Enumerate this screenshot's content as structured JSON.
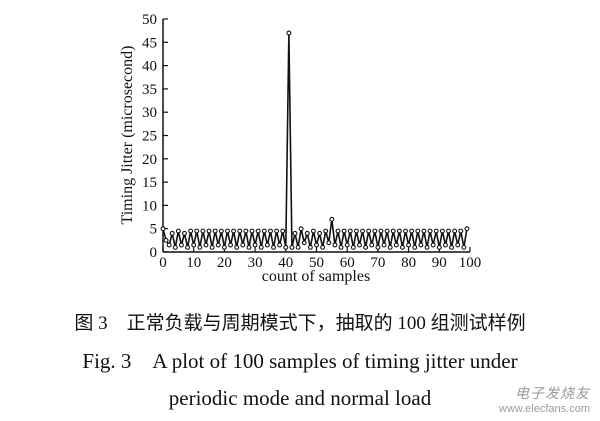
{
  "chart_data": {
    "type": "line",
    "xlabel": "count of samples",
    "ylabel": "Timing Jitter (microsecond)",
    "xlim": [
      0,
      100
    ],
    "ylim": [
      0,
      50
    ],
    "xticks": [
      0,
      10,
      20,
      30,
      40,
      50,
      60,
      70,
      80,
      90,
      100
    ],
    "yticks": [
      0,
      5,
      10,
      15,
      20,
      25,
      30,
      35,
      40,
      45,
      50
    ],
    "grid": false,
    "marker": "circle",
    "series": [
      {
        "values": [
          5.0,
          2.5,
          1.5,
          4.0,
          1.0,
          4.5,
          1.5,
          4.0,
          1.0,
          4.5,
          1.5,
          4.5,
          1.0,
          4.5,
          1.5,
          4.5,
          1.0,
          4.5,
          1.5,
          4.5,
          1.0,
          4.5,
          1.5,
          4.5,
          1.0,
          4.5,
          1.5,
          4.5,
          1.0,
          4.5,
          1.5,
          4.5,
          1.0,
          4.5,
          1.5,
          4.5,
          1.0,
          4.5,
          1.5,
          4.5,
          1.0,
          47.0,
          1.0,
          4.0,
          1.0,
          5.0,
          2.0,
          4.0,
          1.0,
          4.5,
          1.5,
          4.0,
          1.0,
          4.5,
          2.0,
          7.0,
          1.5,
          4.5,
          1.0,
          4.5,
          1.5,
          4.5,
          1.0,
          4.5,
          1.5,
          4.5,
          1.0,
          4.5,
          1.5,
          4.5,
          1.0,
          4.5,
          1.5,
          4.5,
          1.0,
          4.5,
          1.5,
          4.5,
          1.0,
          4.5,
          1.5,
          4.5,
          1.0,
          4.5,
          1.5,
          4.5,
          1.0,
          4.5,
          1.5,
          4.5,
          1.0,
          4.5,
          1.5,
          4.5,
          1.0,
          4.5,
          1.5,
          4.5,
          1.0,
          5.0
        ]
      }
    ]
  },
  "caption": {
    "cn": "图 3　正常负载与周期模式下，抽取的 100 组测试样例",
    "en_line1": "Fig. 3　A plot of 100 samples of timing jitter under",
    "en_line2": "periodic mode and normal load"
  },
  "watermark": {
    "cn": "电子发烧友",
    "en": "www.elecfans.com"
  },
  "colors": {
    "ink": "#111111"
  }
}
